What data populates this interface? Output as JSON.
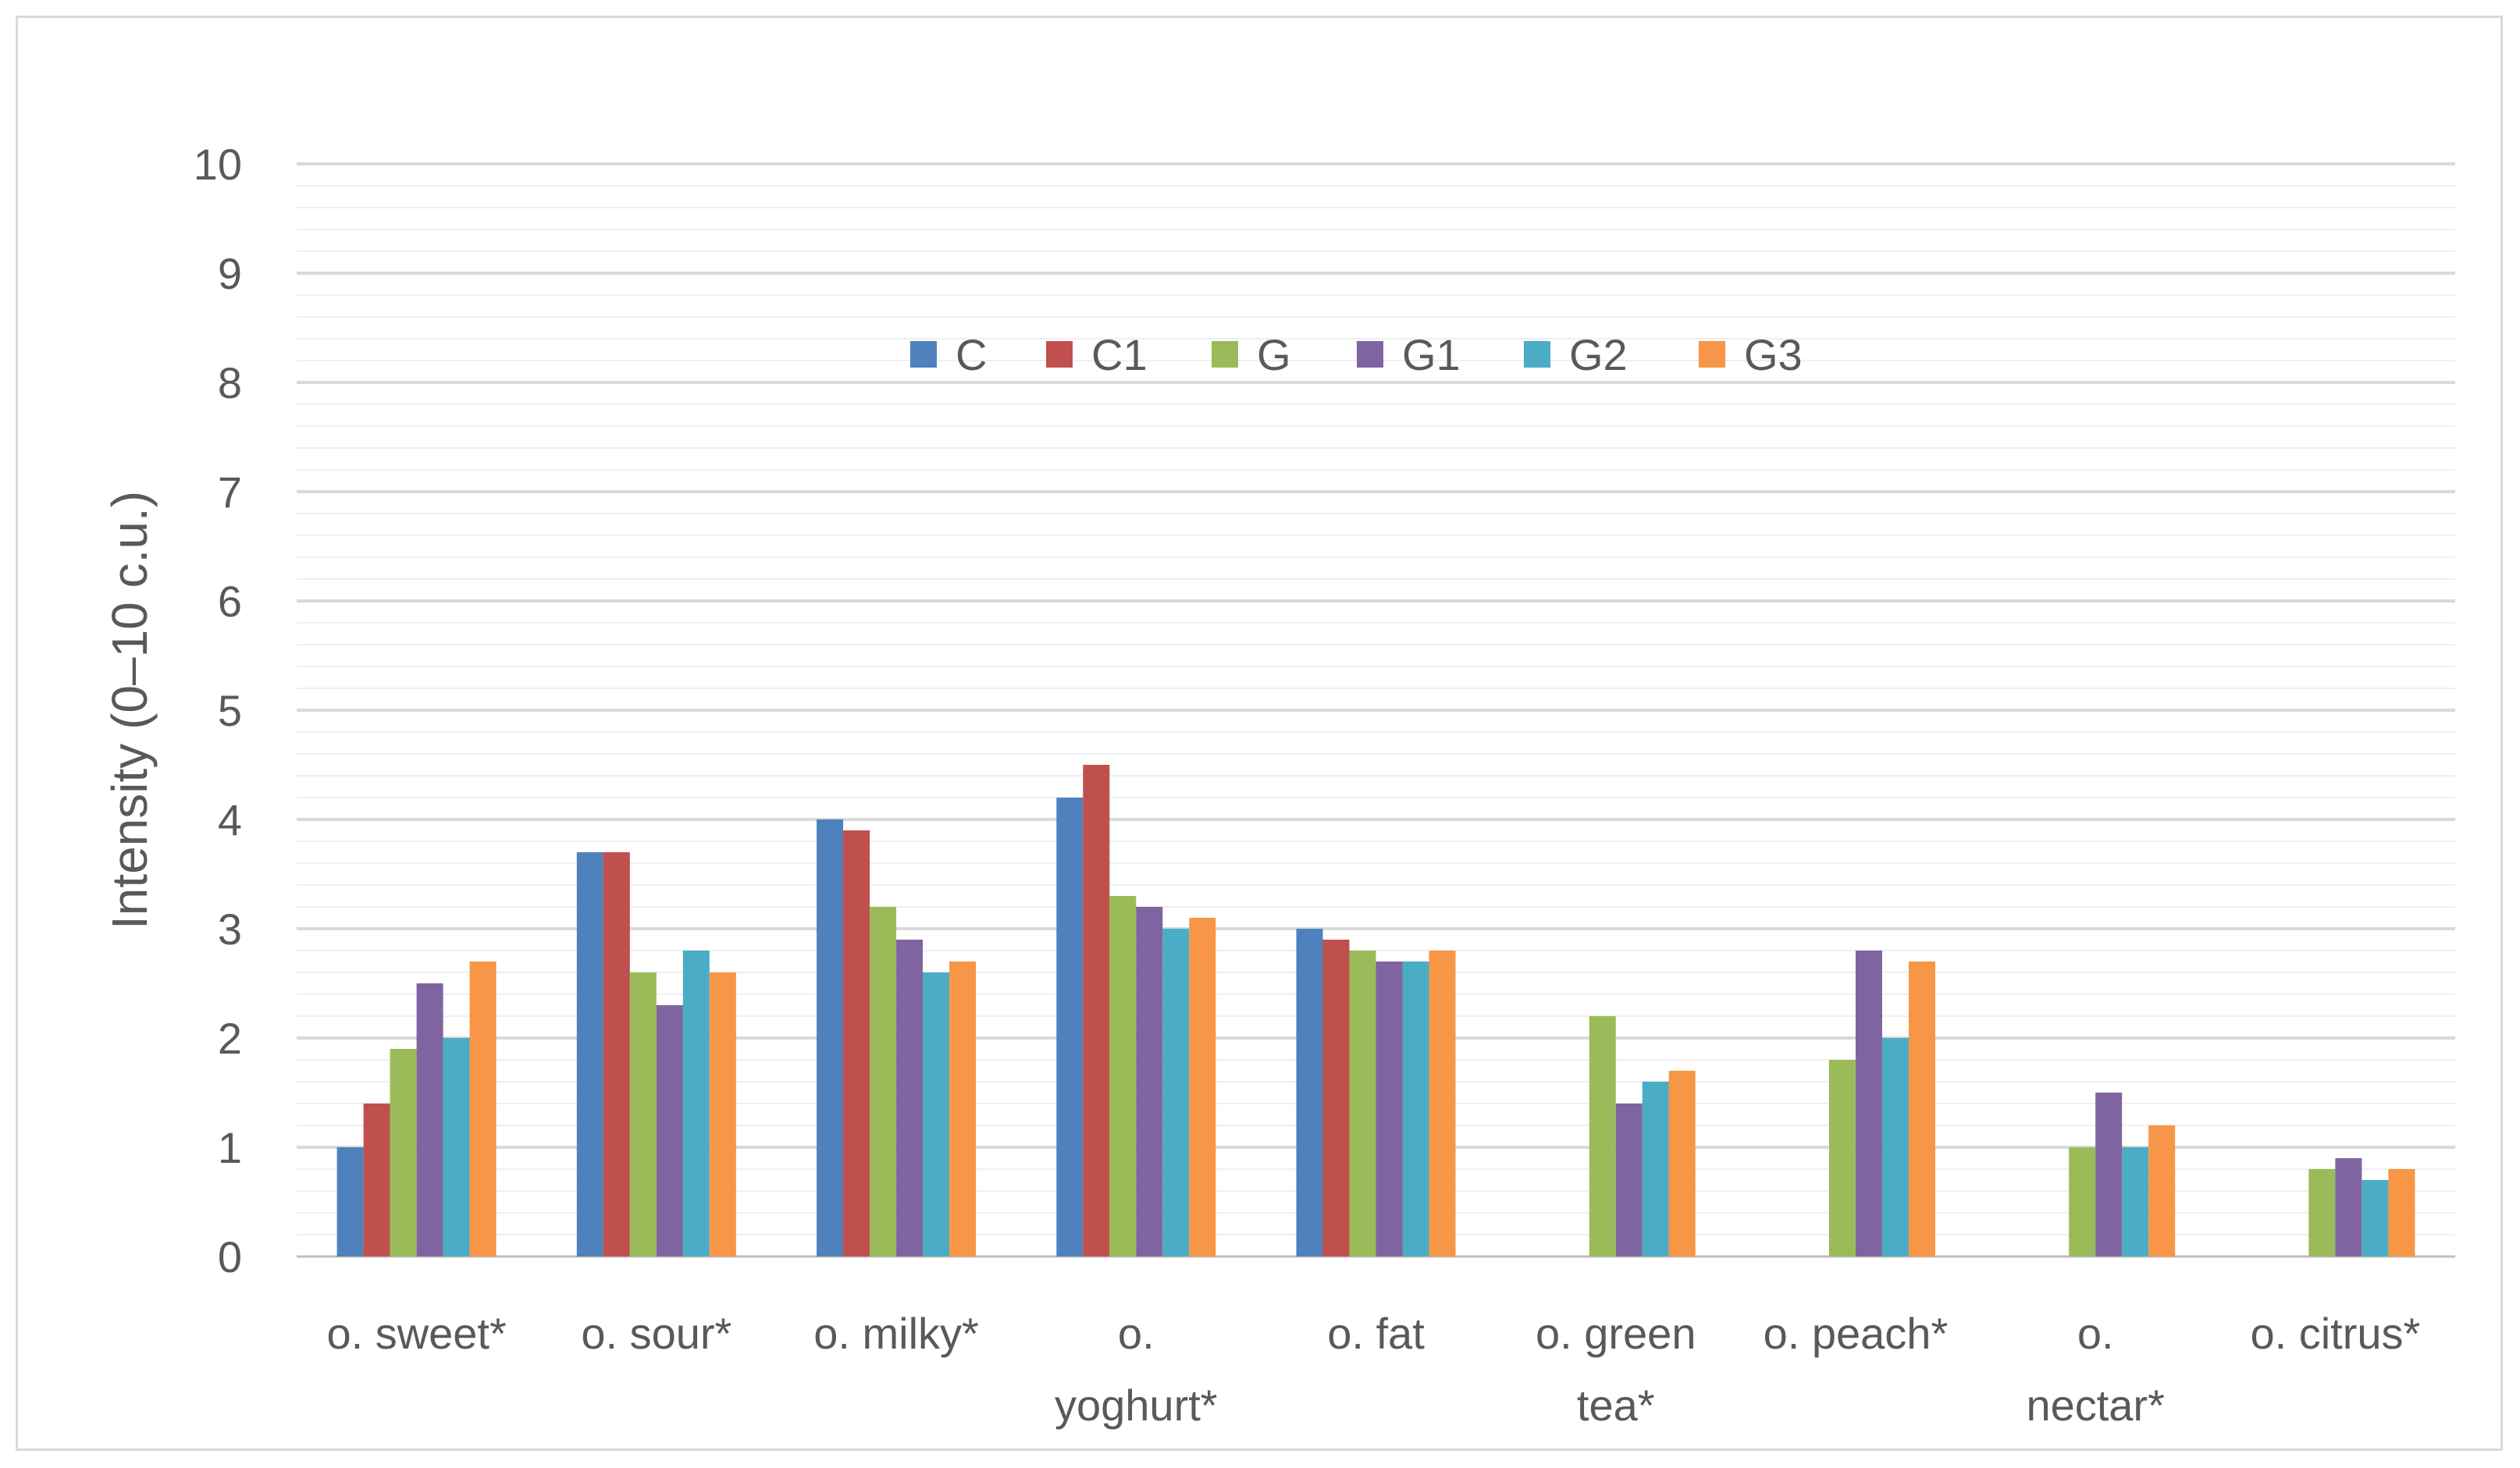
{
  "chart_data": {
    "type": "bar",
    "title": "",
    "xlabel": "",
    "ylabel": "Intensity (0–10 c.u.)",
    "ylim": [
      0,
      10
    ],
    "yticks": [
      "0",
      "1",
      "2",
      "3",
      "4",
      "5",
      "6",
      "7",
      "8",
      "9",
      "10"
    ],
    "grid": true,
    "legend_position": "top-center",
    "categories": [
      [
        "o. sweet*"
      ],
      [
        "o. sour*"
      ],
      [
        "o. milky*"
      ],
      [
        "o.",
        "yoghurt*"
      ],
      [
        "o. fat"
      ],
      [
        "o. green",
        "tea*"
      ],
      [
        "o. peach*"
      ],
      [
        "o.",
        "nectar*"
      ],
      [
        "o. citrus*"
      ]
    ],
    "series": [
      {
        "name": "C",
        "color": "#4f81bd",
        "values": [
          1.0,
          3.7,
          4.0,
          4.2,
          3.0,
          0,
          0,
          0,
          0
        ]
      },
      {
        "name": "C1",
        "color": "#c0504d",
        "values": [
          1.4,
          3.7,
          3.9,
          4.5,
          2.9,
          0,
          0,
          0,
          0
        ]
      },
      {
        "name": "G",
        "color": "#9bbb59",
        "values": [
          1.9,
          2.6,
          3.2,
          3.3,
          2.8,
          2.2,
          1.8,
          1.0,
          0.8
        ]
      },
      {
        "name": "G1",
        "color": "#8064a2",
        "values": [
          2.5,
          2.3,
          2.9,
          3.2,
          2.7,
          1.4,
          2.8,
          1.5,
          0.9
        ]
      },
      {
        "name": "G2",
        "color": "#4bacc6",
        "values": [
          2.0,
          2.8,
          2.6,
          3.0,
          2.7,
          1.6,
          2.0,
          1.0,
          0.7
        ]
      },
      {
        "name": "G3",
        "color": "#f79646",
        "values": [
          2.7,
          2.6,
          2.7,
          3.1,
          2.8,
          1.7,
          2.7,
          1.2,
          0.8
        ]
      }
    ]
  }
}
